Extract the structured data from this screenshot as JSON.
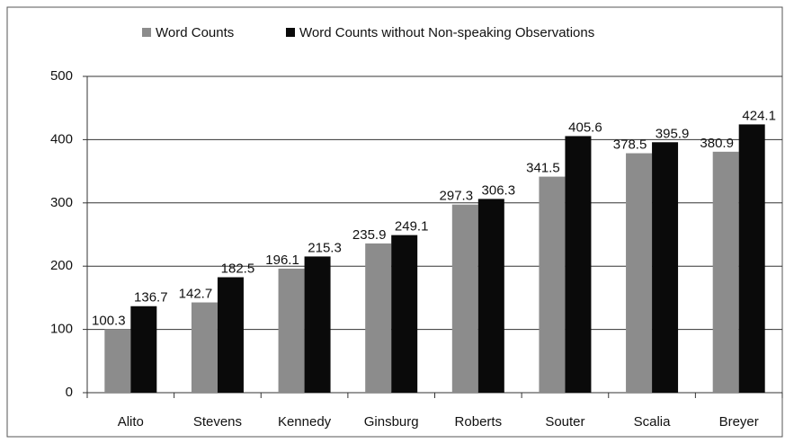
{
  "chart_data": {
    "type": "bar",
    "categories": [
      "Alito",
      "Stevens",
      "Kennedy",
      "Ginsburg",
      "Roberts",
      "Souter",
      "Scalia",
      "Breyer"
    ],
    "series": [
      {
        "name": "Word Counts",
        "color": "#8c8c8c",
        "values": [
          100.3,
          142.7,
          196.1,
          235.9,
          297.3,
          341.5,
          378.5,
          380.9
        ]
      },
      {
        "name": "Word Counts without  Non-speaking Observations",
        "color": "#0a0a0a",
        "values": [
          136.7,
          182.5,
          215.3,
          249.1,
          306.3,
          405.6,
          395.9,
          424.1
        ]
      }
    ],
    "ylim": [
      0,
      500
    ],
    "yticks": [
      0,
      100,
      200,
      300,
      400,
      500
    ],
    "grid": true,
    "legend": "top"
  }
}
